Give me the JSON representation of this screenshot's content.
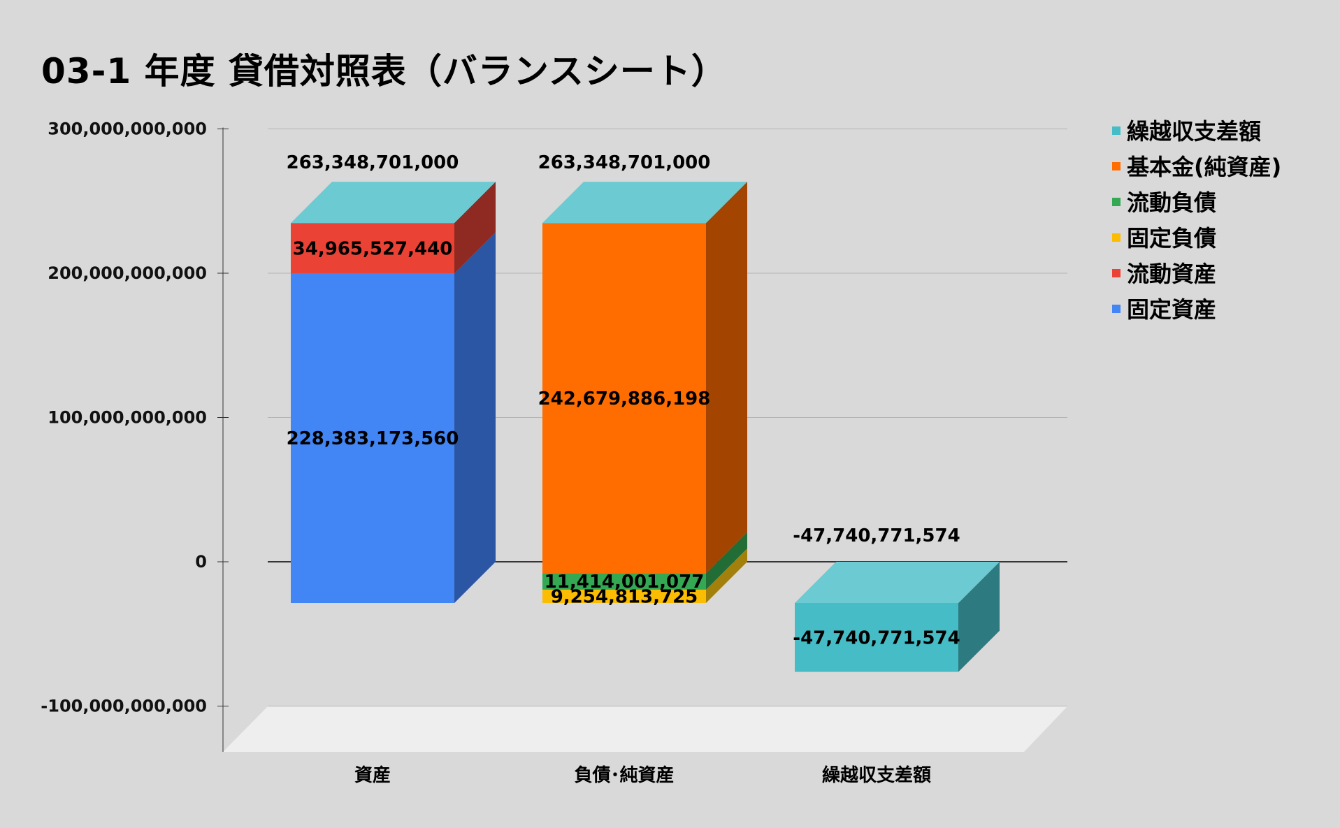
{
  "chart_data": {
    "type": "bar",
    "stacked": true,
    "three_d": true,
    "title": "03-1 年度 貸借対照表（バランスシート）",
    "categories": [
      "資産",
      "負債･純資産",
      "繰越収支差額"
    ],
    "ylim": [
      -100000000000,
      300000000000
    ],
    "yticks": [
      300000000000,
      200000000000,
      100000000000,
      0,
      -100000000000
    ],
    "ytick_labels": [
      "300,000,000,000",
      "200,000,000,000",
      "100,000,000,000",
      "0",
      "-100,000,000,000"
    ],
    "grid": true,
    "legend_position": "right",
    "series": [
      {
        "name": "固定資産",
        "color": "#4285f4",
        "side": "#2b56a3",
        "values": [
          228383173560,
          null,
          null
        ],
        "labels": [
          "228,383,173,560",
          null,
          null
        ]
      },
      {
        "name": "流動資産",
        "color": "#ea4335",
        "side": "#8e2a21",
        "values": [
          34965527440,
          null,
          null
        ],
        "labels": [
          "34,965,527,440",
          null,
          null
        ]
      },
      {
        "name": "固定負債",
        "color": "#fbbc04",
        "side": "#a3800c",
        "values": [
          null,
          9254813725,
          null
        ],
        "labels": [
          null,
          "9,254,813,725",
          null
        ]
      },
      {
        "name": "流動負債",
        "color": "#34a853",
        "side": "#226c36",
        "values": [
          null,
          11414001077,
          null
        ],
        "labels": [
          null,
          "11,414,001,077",
          null
        ]
      },
      {
        "name": "基本金(純資産)",
        "color": "#ff6d01",
        "side": "#a34500",
        "values": [
          null,
          242679886198,
          null
        ],
        "labels": [
          null,
          "242,679,886,198",
          null
        ]
      },
      {
        "name": "繰越収支差額",
        "color": "#46bdc6",
        "side": "#2d7a80",
        "values": [
          null,
          null,
          -47740771574
        ],
        "labels": [
          null,
          null,
          "-47,740,771,574"
        ]
      }
    ],
    "legend_order": [
      "繰越収支差額",
      "基本金(純資産)",
      "流動負債",
      "固定負債",
      "流動資産",
      "固定資産"
    ],
    "totals": [
      "263,348,701,000",
      "263,348,701,000",
      "-47,740,771,574"
    ],
    "top_face_color": "#6ccad2",
    "floor_color": "#eeeeee"
  }
}
